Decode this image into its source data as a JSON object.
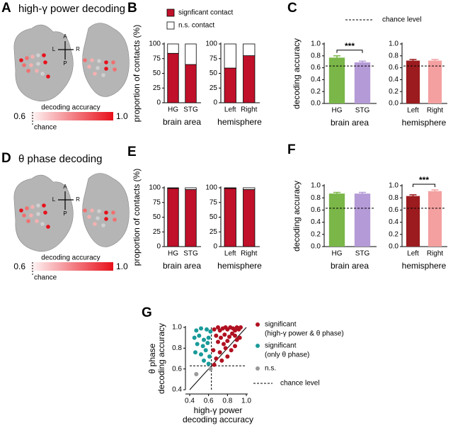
{
  "figure": {
    "A": {
      "letter": "A",
      "title": "high-γ power decoding",
      "compass": [
        "A",
        "L",
        "R",
        "P"
      ],
      "colorbar": {
        "label": "decoding accuracy",
        "min": "0.6",
        "max": "1.0",
        "chance": "chance"
      }
    },
    "D": {
      "letter": "D",
      "title": "θ phase decoding",
      "compass": [
        "A",
        "L",
        "R",
        "P"
      ],
      "colorbar": {
        "label": "decoding accuracy",
        "min": "0.6",
        "max": "1.0",
        "chance": "chance"
      }
    }
  },
  "chart_data": [
    {
      "type": "stacked_bar",
      "panel": "B",
      "ylabel": "proportion of contacts (%)",
      "xlabel": "brain area",
      "categories": [
        "HG",
        "STG"
      ],
      "series": [
        {
          "name": "signficant contact",
          "color": "#c0102a",
          "values": [
            84,
            65
          ]
        },
        {
          "name": "n.s. contact",
          "color": "#ffffff",
          "values": [
            16,
            35
          ]
        }
      ],
      "ylim": [
        0,
        100
      ],
      "yticks": [
        0,
        25,
        50,
        75,
        100
      ]
    },
    {
      "type": "stacked_bar",
      "xlabel": "hemisphere",
      "categories": [
        "Left",
        "Right"
      ],
      "series": [
        {
          "color": "#c0102a",
          "values": [
            59,
            80
          ]
        },
        {
          "color": "#ffffff",
          "values": [
            41,
            20
          ]
        }
      ],
      "ylim": [
        0,
        100
      ],
      "yticks": [
        0,
        25,
        50,
        75,
        100
      ]
    },
    {
      "type": "bar",
      "panel": "C",
      "ylabel": "decoding accuracy",
      "xlabel": "brain area",
      "categories": [
        "HG",
        "STG"
      ],
      "values": [
        0.77,
        0.69
      ],
      "errors": [
        0.03,
        0.02
      ],
      "colors": [
        "#7ab648",
        "#b49ad6"
      ],
      "chance_level": 0.63,
      "chance_label": "chance level",
      "annotation": "***",
      "ylim": [
        0,
        1
      ],
      "yticks": [
        {
          "value": 0,
          "label": "0.0"
        },
        0.2,
        0.4,
        0.6,
        0.8,
        {
          "value": 1,
          "label": "1.0"
        }
      ]
    },
    {
      "type": "bar",
      "xlabel": "hemisphere",
      "categories": [
        "Left",
        "Right"
      ],
      "values": [
        0.72,
        0.72
      ],
      "errors": [
        0.02,
        0.02
      ],
      "colors": [
        "#9b1b1e",
        "#f4a0a0"
      ],
      "chance_level": 0.63,
      "ylim": [
        0,
        1
      ],
      "yticks": [
        {
          "value": 0,
          "label": "0.0"
        },
        0.2,
        0.4,
        0.6,
        0.8,
        {
          "value": 1,
          "label": "1.0"
        }
      ]
    },
    {
      "type": "stacked_bar",
      "panel": "E",
      "ylabel": "proportion of contacts (%)",
      "xlabel": "brain area",
      "categories": [
        "HG",
        "STG"
      ],
      "series": [
        {
          "color": "#c0102a",
          "values": [
            99,
            97
          ]
        },
        {
          "color": "#ffffff",
          "values": [
            1,
            3
          ]
        }
      ],
      "ylim": [
        0,
        100
      ],
      "yticks": [
        0,
        25,
        50,
        75,
        100
      ]
    },
    {
      "type": "stacked_bar",
      "xlabel": "hemisphere",
      "categories": [
        "Left",
        "Right"
      ],
      "series": [
        {
          "color": "#c0102a",
          "values": [
            99,
            97
          ]
        },
        {
          "color": "#ffffff",
          "values": [
            1,
            3
          ]
        }
      ],
      "ylim": [
        0,
        100
      ],
      "yticks": [
        0,
        25,
        50,
        75,
        100
      ]
    },
    {
      "type": "bar",
      "panel": "F",
      "ylabel": "decoding accuracy",
      "xlabel": "brain area",
      "categories": [
        "HG",
        "STG"
      ],
      "values": [
        0.87,
        0.87
      ],
      "errors": [
        0.02,
        0.02
      ],
      "colors": [
        "#7ab648",
        "#b49ad6"
      ],
      "chance_level": 0.63,
      "ylim": [
        0,
        1
      ],
      "yticks": [
        {
          "value": 0,
          "label": "0.0"
        },
        0.2,
        0.4,
        0.6,
        0.8,
        {
          "value": 1,
          "label": "1.0"
        }
      ]
    },
    {
      "type": "bar",
      "xlabel": "hemisphere",
      "categories": [
        "Left",
        "Right"
      ],
      "values": [
        0.83,
        0.91
      ],
      "errors": [
        0.02,
        0.02
      ],
      "colors": [
        "#9b1b1e",
        "#f4a0a0"
      ],
      "chance_level": 0.63,
      "annotation": "***",
      "ylim": [
        0,
        1
      ],
      "yticks": [
        {
          "value": 0,
          "label": "0.0"
        },
        0.2,
        0.4,
        0.6,
        0.8,
        {
          "value": 1,
          "label": "1.0"
        }
      ]
    },
    {
      "type": "scatter",
      "panel": "G",
      "xlabel": [
        "high-γ power",
        "decoding accuracy"
      ],
      "ylabel": [
        "θ phase",
        "decoding accuracy"
      ],
      "chance_level": 0.63,
      "chance_label": "chance level",
      "series": [
        {
          "name": [
            "significant",
            "(high-γ power & θ phase)"
          ],
          "color": "#b01020",
          "x": [
            0.66,
            0.7,
            0.72,
            0.75,
            0.78,
            0.8,
            0.83,
            0.86,
            0.88,
            0.9,
            0.92,
            0.94,
            0.68,
            0.73,
            0.77,
            0.82,
            0.85,
            0.88,
            0.7,
            0.76,
            0.8,
            0.9,
            0.65,
            0.72,
            0.78,
            0.84,
            0.68,
            0.74,
            0.8,
            0.66,
            0.88,
            0.93
          ],
          "values": [
            0.98,
            1.0,
            0.97,
            0.99,
            1.0,
            0.98,
            1.0,
            0.99,
            0.97,
            1.0,
            0.98,
            1.0,
            0.92,
            0.9,
            0.93,
            0.91,
            0.94,
            0.92,
            0.86,
            0.84,
            0.87,
            0.88,
            0.78,
            0.76,
            0.8,
            0.78,
            0.7,
            0.68,
            0.72,
            0.64,
            0.82,
            0.9
          ]
        },
        {
          "name": [
            "significant",
            "(only θ phase)"
          ],
          "color": "#1a9a9a",
          "x": [
            0.47,
            0.52,
            0.58,
            0.62,
            0.45,
            0.5,
            0.55,
            0.6,
            0.48,
            0.54,
            0.59,
            0.46,
            0.52,
            0.57,
            0.61,
            0.55,
            0.6
          ],
          "values": [
            0.97,
            0.99,
            0.98,
            0.96,
            0.9,
            0.92,
            0.88,
            0.9,
            0.84,
            0.82,
            0.85,
            0.76,
            0.74,
            0.78,
            0.72,
            0.68,
            0.65
          ]
        },
        {
          "name": [
            "n.s."
          ],
          "color": "#999999",
          "x": [
            0.47,
            0.62
          ],
          "values": [
            0.55,
            0.6
          ]
        }
      ],
      "xlim": [
        0.4,
        1.0
      ],
      "ylim": [
        0.4,
        1.0
      ],
      "xticks": [
        0.4,
        0.6,
        0.8,
        {
          "value": 1,
          "label": "1.0"
        }
      ],
      "yticks": [
        0.4,
        0.6,
        0.8,
        {
          "value": 1,
          "label": "1.0"
        }
      ]
    }
  ]
}
